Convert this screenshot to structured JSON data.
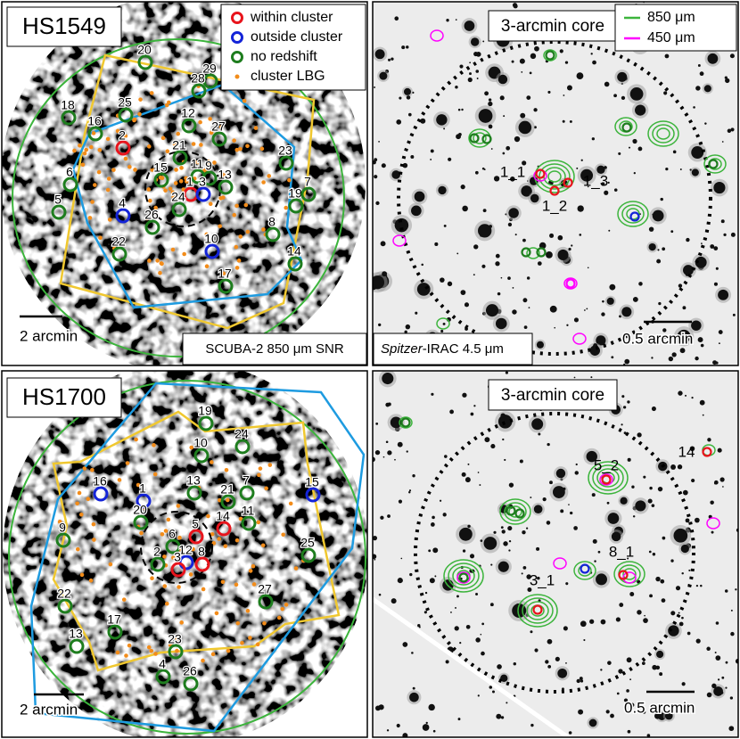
{
  "panels": [
    {
      "title": "HS1549",
      "legend": [
        {
          "label": "within cluster",
          "color": "#e8141c",
          "marker": "ring"
        },
        {
          "label": "outside cluster",
          "color": "#1424d8",
          "marker": "ring"
        },
        {
          "label": "no redshift",
          "color": "#1e7d1e",
          "marker": "ring"
        },
        {
          "label": "cluster LBG",
          "color": "#f28c1a",
          "marker": "dot"
        }
      ],
      "scale_bar": "2 arcmin",
      "footer": "SCUBA-2 850 μm SNR",
      "sources": [
        {
          "label": "20",
          "color": "#1e7d1e"
        },
        {
          "label": "29",
          "color": "#1e7d1e"
        },
        {
          "label": "28",
          "color": "#1e7d1e"
        },
        {
          "label": "18",
          "color": "#1e7d1e"
        },
        {
          "label": "25",
          "color": "#1e7d1e"
        },
        {
          "label": "16",
          "color": "#1e7d1e"
        },
        {
          "label": "12",
          "color": "#1e7d1e"
        },
        {
          "label": "27",
          "color": "#1e7d1e"
        },
        {
          "label": "2",
          "color": "#e8141c"
        },
        {
          "label": "21",
          "color": "#1e7d1e"
        },
        {
          "label": "23",
          "color": "#1e7d1e"
        },
        {
          "label": "6",
          "color": "#1e7d1e"
        },
        {
          "label": "15",
          "color": "#1e7d1e"
        },
        {
          "label": "11",
          "color": "#1e7d1e"
        },
        {
          "label": "9",
          "color": "#1e7d1e"
        },
        {
          "label": "13",
          "color": "#1e7d1e"
        },
        {
          "label": "1",
          "color": "#e8141c"
        },
        {
          "label": "3",
          "color": "#1424d8"
        },
        {
          "label": "24",
          "color": "#1e7d1e"
        },
        {
          "label": "5",
          "color": "#1e7d1e"
        },
        {
          "label": "19",
          "color": "#1e7d1e"
        },
        {
          "label": "7",
          "color": "#1e7d1e"
        },
        {
          "label": "4",
          "color": "#1424d8"
        },
        {
          "label": "26",
          "color": "#1e7d1e"
        },
        {
          "label": "8",
          "color": "#1e7d1e"
        },
        {
          "label": "22",
          "color": "#1e7d1e"
        },
        {
          "label": "10",
          "color": "#1424d8"
        },
        {
          "label": "14",
          "color": "#1e7d1e"
        },
        {
          "label": "17",
          "color": "#1e7d1e"
        }
      ]
    },
    {
      "title": "3-arcmin core",
      "legend": [
        {
          "label": "850 μm",
          "color": "#3cb43c",
          "marker": "line"
        },
        {
          "label": "450 μm",
          "color": "#ff00ff",
          "marker": "line"
        }
      ],
      "scale_bar": "0.5 arcmin",
      "footer": {
        "italic": "Spitzer",
        "text": "-IRAC 4.5 μm"
      },
      "sources": [
        {
          "label": "1_1"
        },
        {
          "label": "1_3"
        },
        {
          "label": "1_2"
        }
      ]
    },
    {
      "title": "HS1700",
      "scale_bar": "2 arcmin",
      "sources": [
        {
          "label": "19",
          "color": "#1e7d1e"
        },
        {
          "label": "24",
          "color": "#1e7d1e"
        },
        {
          "label": "10",
          "color": "#1e7d1e"
        },
        {
          "label": "13",
          "color": "#1e7d1e"
        },
        {
          "label": "7",
          "color": "#1e7d1e"
        },
        {
          "label": "21",
          "color": "#1e7d1e"
        },
        {
          "label": "16",
          "color": "#1424d8"
        },
        {
          "label": "1",
          "color": "#1424d8"
        },
        {
          "label": "20",
          "color": "#1e7d1e"
        },
        {
          "label": "5",
          "color": "#e8141c"
        },
        {
          "label": "14",
          "color": "#e8141c"
        },
        {
          "label": "11",
          "color": "#1e7d1e"
        },
        {
          "label": "15",
          "color": "#1424d8"
        },
        {
          "label": "9",
          "color": "#1e7d1e"
        },
        {
          "label": "6",
          "color": "#1e7d1e"
        },
        {
          "label": "2",
          "color": "#1e7d1e"
        },
        {
          "label": "12",
          "color": "#1424d8"
        },
        {
          "label": "8",
          "color": "#e8141c"
        },
        {
          "label": "3",
          "color": "#e8141c"
        },
        {
          "label": "25",
          "color": "#1e7d1e"
        },
        {
          "label": "22",
          "color": "#1e7d1e"
        },
        {
          "label": "27",
          "color": "#1e7d1e"
        },
        {
          "label": "17",
          "color": "#1e7d1e"
        },
        {
          "label": "13",
          "color": "#1e7d1e"
        },
        {
          "label": "23",
          "color": "#1e7d1e"
        },
        {
          "label": "4",
          "color": "#1e7d1e"
        },
        {
          "label": "26",
          "color": "#1e7d1e"
        }
      ]
    },
    {
      "title": "3-arcmin core",
      "scale_bar": "0.5 arcmin",
      "sources": [
        {
          "label": "14"
        },
        {
          "label": "5_2"
        },
        {
          "label": "8_1"
        },
        {
          "label": "3_1"
        }
      ]
    }
  ]
}
